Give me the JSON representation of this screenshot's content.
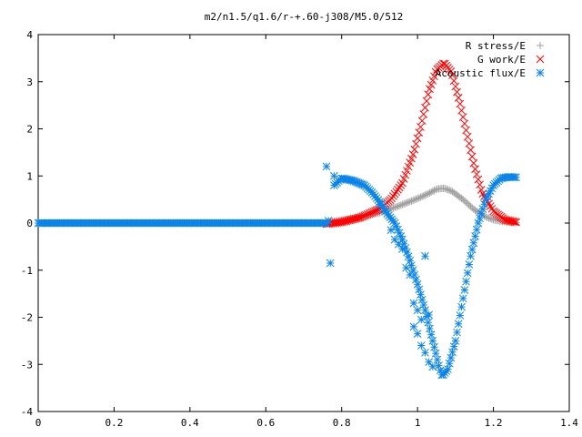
{
  "chart_data": {
    "type": "scatter",
    "title": "m2/n1.5/q1.6/r-+.60-j308/M5.0/512",
    "xlabel": "",
    "ylabel": "",
    "xlim": [
      0,
      1.4
    ],
    "ylim": [
      -4,
      4
    ],
    "xticks": [
      "0",
      "0.2",
      "0.4",
      "0.6",
      "0.8",
      "1",
      "1.2",
      "1.4"
    ],
    "yticks": [
      "-4",
      "-3",
      "-2",
      "-1",
      "0",
      "1",
      "2",
      "3",
      "4"
    ],
    "grid": false,
    "legend_position": "top-right",
    "series": [
      {
        "name": "R stress/E",
        "color": "#a0a0a0",
        "marker": "plus",
        "x": [
          0.76,
          0.8,
          0.85,
          0.9,
          0.95,
          1.0,
          1.03,
          1.05,
          1.07,
          1.09,
          1.12,
          1.15,
          1.18,
          1.2,
          1.22,
          1.24,
          1.26
        ],
        "y": [
          0.02,
          0.06,
          0.13,
          0.22,
          0.36,
          0.52,
          0.63,
          0.72,
          0.74,
          0.68,
          0.5,
          0.28,
          0.13,
          0.07,
          0.04,
          0.02,
          0.01
        ]
      },
      {
        "name": "G work/E",
        "color": "#ff0000",
        "marker": "cross",
        "x": [
          0.76,
          0.8,
          0.85,
          0.9,
          0.93,
          0.96,
          0.99,
          1.01,
          1.03,
          1.05,
          1.07,
          1.09,
          1.11,
          1.13,
          1.15,
          1.17,
          1.2,
          1.23,
          1.26
        ],
        "y": [
          -0.02,
          0.02,
          0.12,
          0.3,
          0.5,
          0.85,
          1.5,
          2.1,
          2.8,
          3.25,
          3.4,
          3.2,
          2.6,
          1.9,
          1.2,
          0.65,
          0.25,
          0.07,
          0.02
        ]
      },
      {
        "name": "Acoustic flux/E",
        "color": "#0a84e8",
        "marker": "star",
        "x": [
          0.78,
          0.8,
          0.83,
          0.86,
          0.88,
          0.9,
          0.92,
          0.94,
          0.96,
          0.98,
          1.0,
          1.02,
          1.04,
          1.055,
          1.065,
          1.08,
          1.1,
          1.12,
          1.14,
          1.16,
          1.18,
          1.2,
          1.22,
          1.24,
          1.26
        ],
        "y": [
          0.8,
          0.95,
          0.9,
          0.8,
          0.65,
          0.45,
          0.2,
          0.0,
          -0.35,
          -0.8,
          -1.3,
          -1.85,
          -2.5,
          -3.0,
          -3.25,
          -3.1,
          -2.5,
          -1.6,
          -0.7,
          0.0,
          0.5,
          0.8,
          0.95,
          0.98,
          0.97
        ],
        "zero_baseline_range": [
          0,
          0.76
        ]
      }
    ],
    "scatter_outliers": {
      "series": "Acoustic flux/E",
      "x": [
        0.76,
        0.765,
        0.77,
        0.78,
        0.9,
        0.93,
        0.94,
        0.95,
        0.96,
        0.97,
        0.98,
        0.99,
        1.0,
        1.01,
        1.02,
        1.03,
        1.04,
        0.99,
        1.0,
        1.01,
        1.02,
        1.03
      ],
      "y": [
        1.2,
        0.05,
        -0.85,
        1.0,
        0.4,
        -0.15,
        -0.35,
        -0.45,
        -0.55,
        -0.95,
        -1.1,
        -2.2,
        -2.35,
        -2.6,
        -2.75,
        -2.95,
        -3.05,
        -1.7,
        -1.85,
        -2.05,
        -0.7,
        -1.95
      ]
    }
  }
}
